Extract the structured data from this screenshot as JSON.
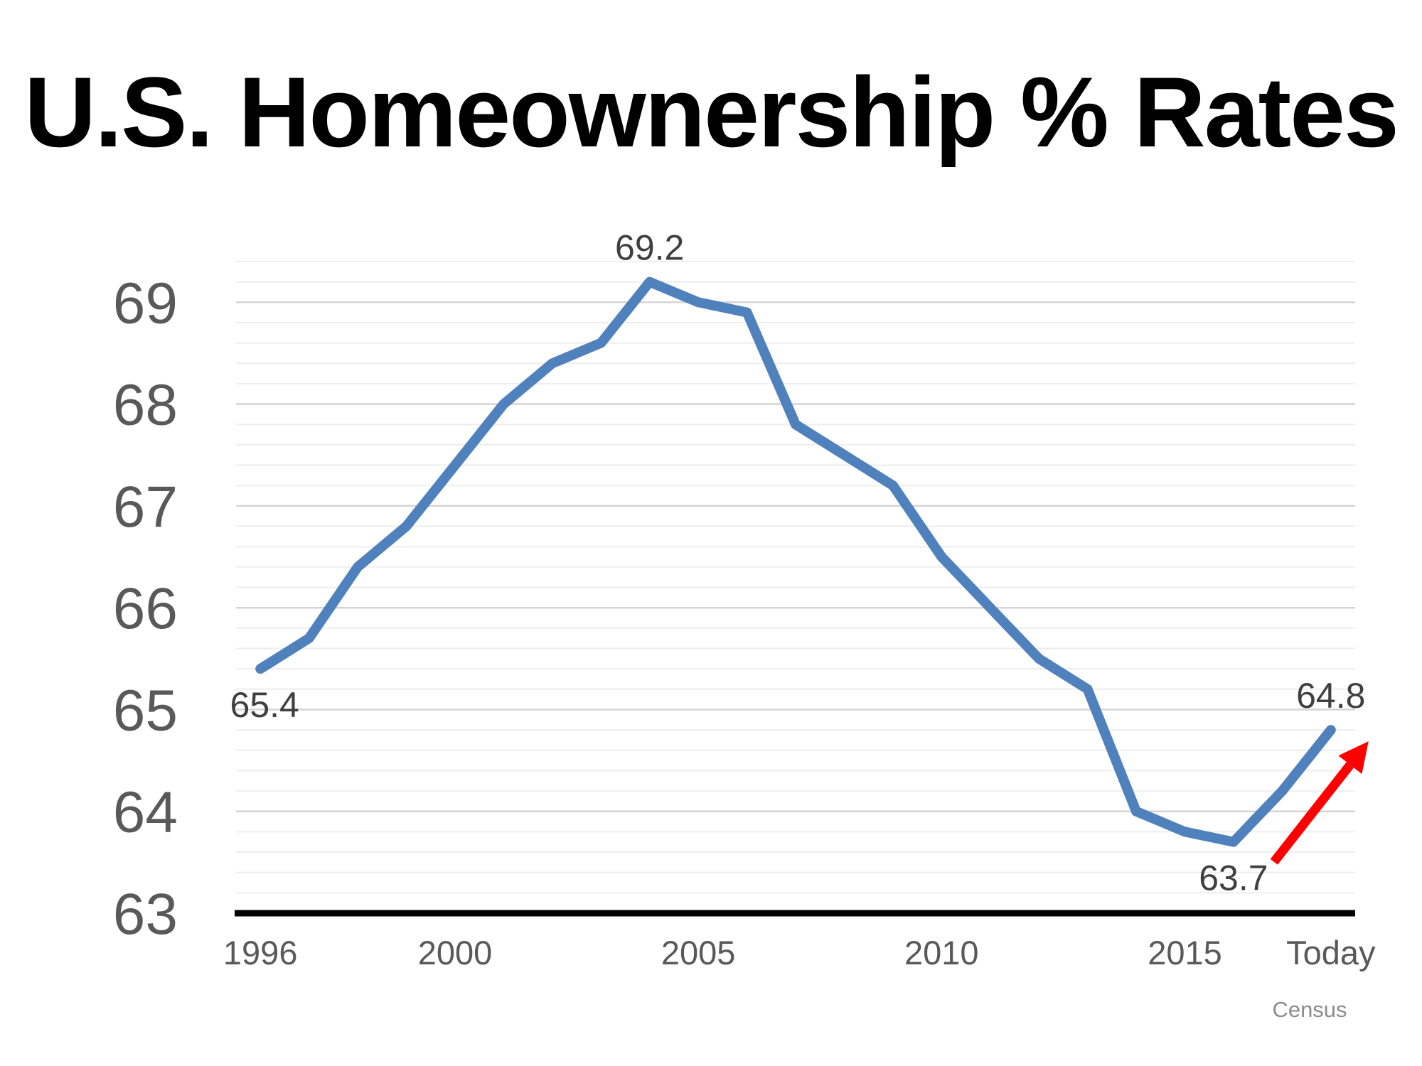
{
  "title": "U.S. Homeownership % Rates",
  "source": "Census",
  "chart_data": {
    "type": "line",
    "title": "U.S. Homeownership % Rates",
    "xlabel": "",
    "ylabel": "",
    "categories": [
      "1996",
      "1997",
      "1998",
      "1999",
      "2000",
      "2001",
      "2002",
      "2003",
      "2004",
      "2005",
      "2006",
      "2007",
      "2008",
      "2009",
      "2010",
      "2011",
      "2012",
      "2013",
      "2014",
      "2015",
      "2016",
      "2017",
      "Today"
    ],
    "values": [
      65.4,
      65.7,
      66.4,
      66.8,
      67.4,
      68.0,
      68.4,
      68.6,
      69.2,
      69.0,
      68.9,
      67.8,
      67.5,
      67.2,
      66.5,
      66.0,
      65.5,
      65.2,
      64.0,
      63.8,
      63.7,
      64.2,
      64.8
    ],
    "series_name": "U.S. Homeownership Rate (%)",
    "ylim": [
      63,
      69.4
    ],
    "y_major_ticks": [
      63,
      64,
      65,
      66,
      67,
      68,
      69
    ],
    "y_minor_step": 0.2,
    "grid": true,
    "legend": false,
    "x_tick_labels": [
      {
        "index": 0,
        "label": "1996"
      },
      {
        "index": 4,
        "label": "2000"
      },
      {
        "index": 9,
        "label": "2005"
      },
      {
        "index": 14,
        "label": "2010"
      },
      {
        "index": 19,
        "label": "2015"
      },
      {
        "index": 22,
        "label": "Today"
      }
    ],
    "point_labels": [
      {
        "index": 0,
        "text": "65.4",
        "placement": "below"
      },
      {
        "index": 8,
        "text": "69.2",
        "placement": "above"
      },
      {
        "index": 20,
        "text": "63.7",
        "placement": "below"
      },
      {
        "index": 22,
        "text": "64.8",
        "placement": "above"
      }
    ],
    "annotations": {
      "trend_arrow": {
        "description": "red arrow pointing up-right from the 63.7 low toward the 64.8 endpoint",
        "color": "#fe0000"
      }
    },
    "colors": {
      "line": "#4f81bd",
      "arrow": "#fe0000",
      "axis": "#000000",
      "major_grid": "#d4d4d4",
      "minor_grid": "#eeeeee",
      "tick_label": "#595959",
      "data_label": "#3f3f3f",
      "title": "#000000",
      "source": "#8c8c8c"
    }
  }
}
